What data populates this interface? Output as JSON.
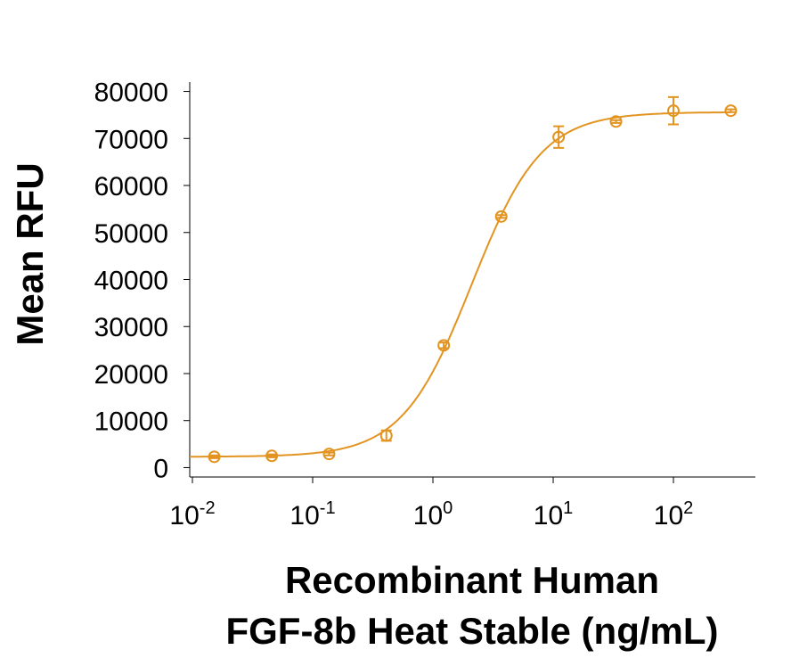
{
  "chart_data": {
    "type": "scatter",
    "ylabel": "Mean RFU",
    "xlabel": [
      "Recombinant Human",
      "FGF-8b Heat Stable (ng/mL)"
    ],
    "xscale": "log",
    "x": [
      0.0152,
      0.0457,
      0.137,
      0.41,
      1.23,
      3.7,
      11.1,
      33.3,
      100,
      300
    ],
    "series": [
      {
        "color": "#e39420",
        "values": [
          2300,
          2500,
          2900,
          6800,
          26000,
          53400,
          70300,
          73600,
          75900,
          75900
        ],
        "errors": [
          300,
          300,
          300,
          1100,
          600,
          300,
          2300,
          300,
          2900,
          300
        ]
      }
    ],
    "fit": {
      "bottom": 2300,
      "top": 75600,
      "ec50": 2.1,
      "hill": 1.5
    },
    "xlim": [
      0.0095,
      480
    ],
    "ylim": [
      -2000,
      82000
    ],
    "xticks": [
      {
        "value": 0.01,
        "label": "10",
        "sup": "-2"
      },
      {
        "value": 0.1,
        "label": "10",
        "sup": "-1"
      },
      {
        "value": 1,
        "label": "10",
        "sup": "0"
      },
      {
        "value": 10,
        "label": "10",
        "sup": "1"
      },
      {
        "value": 100,
        "label": "10",
        "sup": "2"
      }
    ],
    "yticks": [
      0,
      10000,
      20000,
      30000,
      40000,
      50000,
      60000,
      70000,
      80000
    ]
  }
}
